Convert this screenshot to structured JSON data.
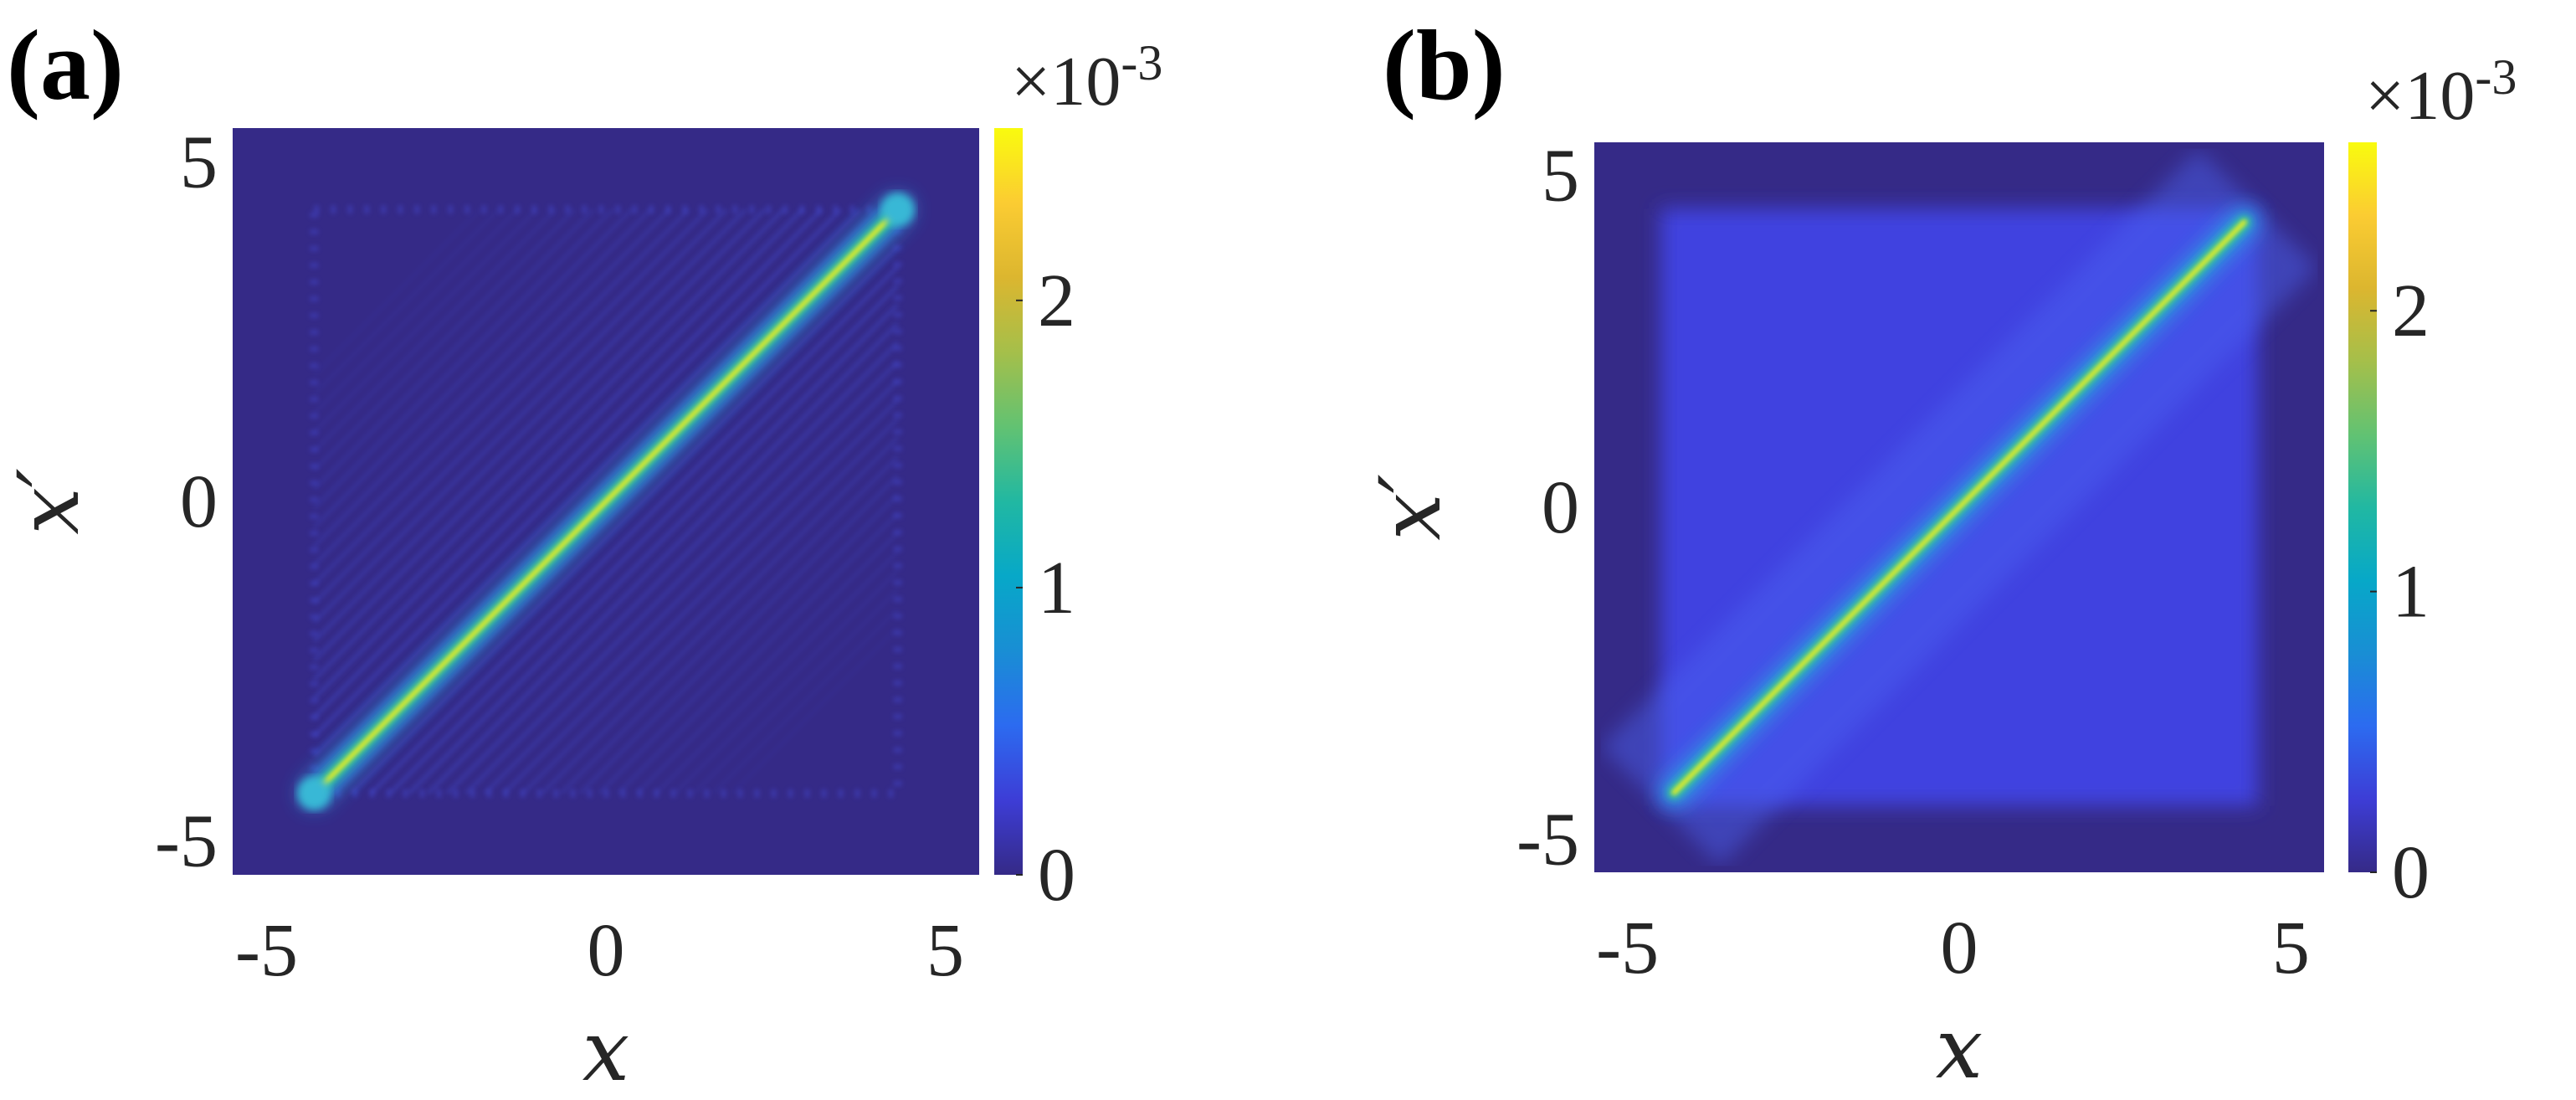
{
  "chart_data": [
    {
      "type": "heatmap",
      "panel": "(a)",
      "xlabel": "x",
      "ylabel": "x′",
      "xlim": [
        -5.5,
        5.5
      ],
      "ylim": [
        -5.5,
        5.5
      ],
      "xticks": [
        -5,
        0,
        5
      ],
      "yticks": [
        -5,
        0,
        5
      ],
      "xtick_labels": [
        "-5",
        "0",
        "5"
      ],
      "ytick_labels": [
        "-5",
        "0",
        "5"
      ],
      "colorbar": {
        "range": [
          0,
          0.0026
        ],
        "ticks": [
          0,
          1,
          2
        ],
        "tick_labels": [
          "0",
          "1",
          "2"
        ],
        "exponent_label": "×10",
        "exponent": "-3",
        "colormap": "parula"
      },
      "features": {
        "diagonal_peak": 0.0025,
        "diagonal_extent": [
          -4.3,
          4.3
        ],
        "background": 0.0,
        "oscillation_region": [
          -4.3,
          4.3
        ],
        "endpoint_blob": true
      }
    },
    {
      "type": "heatmap",
      "panel": "(b)",
      "xlabel": "x",
      "ylabel": "x′",
      "xlim": [
        -5.5,
        5.5
      ],
      "ylim": [
        -5.5,
        5.5
      ],
      "xticks": [
        -5,
        0,
        5
      ],
      "yticks": [
        -5,
        0,
        5
      ],
      "xtick_labels": [
        "-5",
        "0",
        "5"
      ],
      "ytick_labels": [
        "-5",
        "0",
        "5"
      ],
      "colorbar": {
        "range": [
          0,
          0.0026
        ],
        "ticks": [
          0,
          1,
          2
        ],
        "tick_labels": [
          "0",
          "1",
          "2"
        ],
        "exponent_label": "×10",
        "exponent": "-3",
        "colormap": "parula"
      },
      "features": {
        "diagonal_peak": 0.0025,
        "diagonal_extent": [
          -4.3,
          4.3
        ],
        "background": 0.0,
        "inner_square_level": 0.00025,
        "inner_square_extent": [
          -4.5,
          4.5
        ],
        "endpoint_blob": false
      }
    }
  ]
}
